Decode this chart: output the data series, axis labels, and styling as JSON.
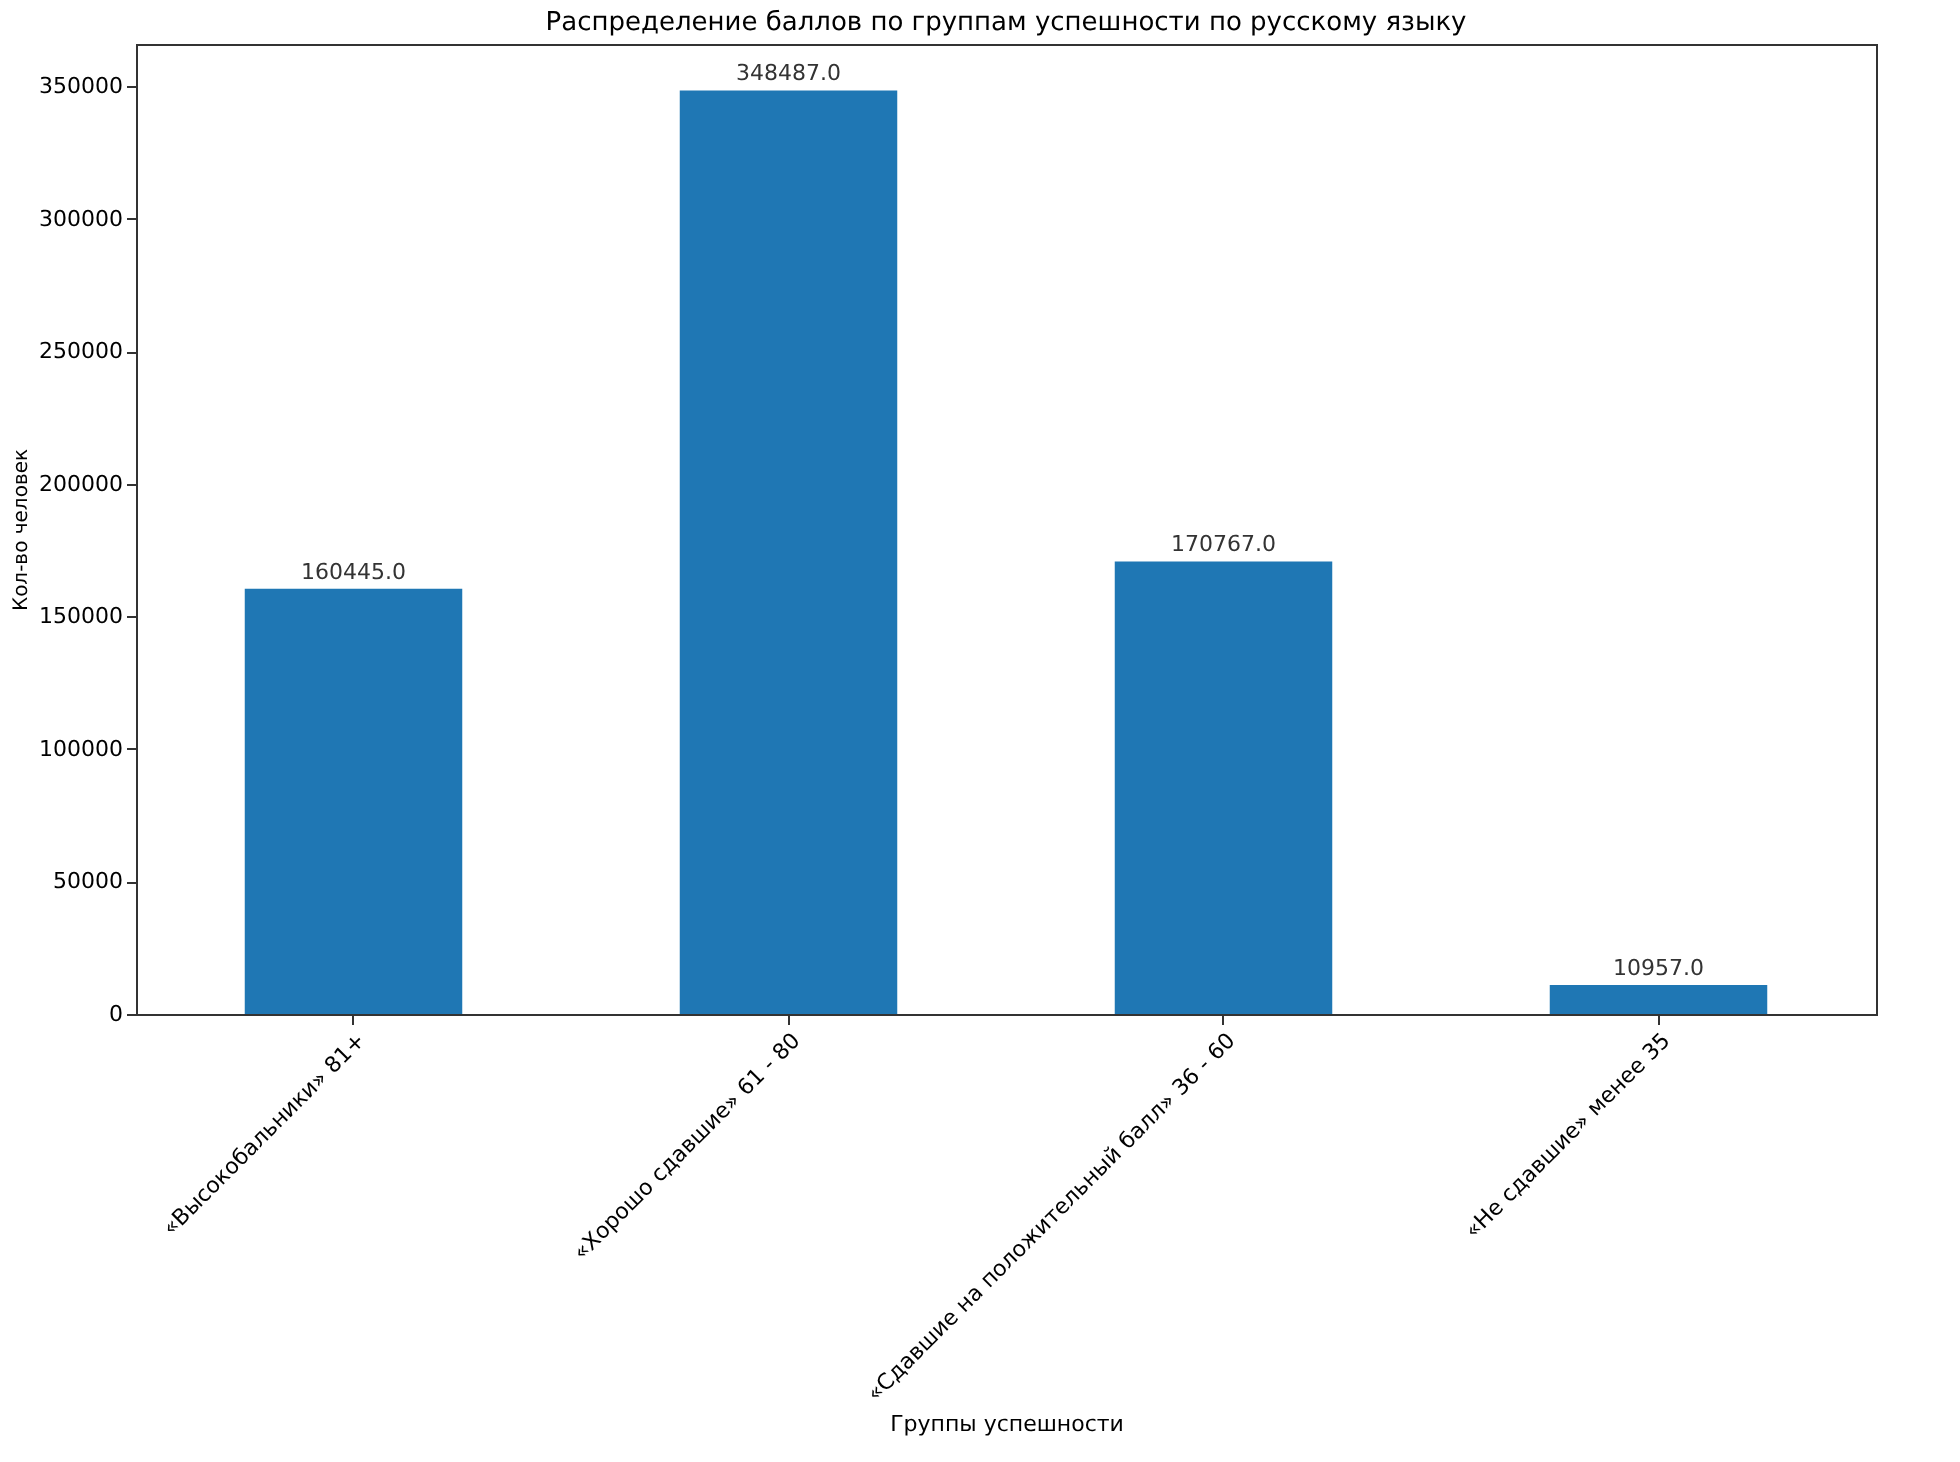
{
  "chart_data": {
    "type": "bar",
    "title": "Распределение баллов по группам успешности по русскому языку",
    "xlabel": "Группы успешности",
    "ylabel": "Кол-во человек",
    "categories": [
      "«Высокобальники» 81+",
      "«Хорошо сдавшие» 61 - 80",
      "«Сдавшие на положительный балл» 36 - 60",
      "«Не сдавшие» менее 35"
    ],
    "values": [
      160445,
      348487,
      170767,
      10957
    ],
    "value_labels": [
      "160445.0",
      "348487.0",
      "170767.0",
      "10957.0"
    ],
    "color": "#1f77b4",
    "ylim": [
      0,
      366000
    ],
    "yticks": [
      0,
      50000,
      100000,
      150000,
      200000,
      250000,
      300000,
      350000
    ],
    "grid": false
  }
}
